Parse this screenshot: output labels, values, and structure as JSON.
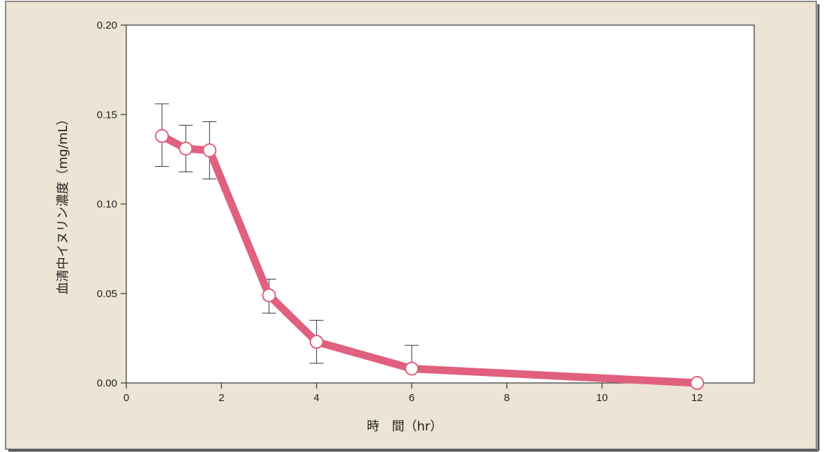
{
  "colors": {
    "background": "#ece4d4",
    "plot_area": "#ffffff",
    "series": "#e0607e",
    "marker_fill": "#ffffff",
    "axis": "#333333"
  },
  "chart_data": {
    "type": "line",
    "title": "",
    "xlabel": "時　間（hr）",
    "ylabel": "血清中イヌリン濃度（mg/mL）",
    "xlim": [
      0,
      13.2
    ],
    "ylim": [
      0,
      0.2
    ],
    "xticks": [
      0,
      2,
      4,
      6,
      8,
      10,
      12
    ],
    "xtick_labels": [
      "0",
      "2",
      "4",
      "6",
      "8",
      "10",
      "12"
    ],
    "yticks": [
      0,
      0.05,
      0.1,
      0.15,
      0.2
    ],
    "ytick_labels": [
      "0.00",
      "0.05",
      "0.10",
      "0.15",
      "0.20"
    ],
    "grid": false,
    "legend": "none",
    "series": [
      {
        "x": [
          0.75,
          1.25,
          1.75,
          3,
          4,
          6,
          12
        ],
        "y": [
          0.138,
          0.131,
          0.13,
          0.049,
          0.023,
          0.008,
          0.0
        ],
        "error_upper": [
          0.156,
          0.144,
          0.146,
          0.058,
          0.035,
          0.021,
          null
        ],
        "error_lower": [
          0.121,
          0.118,
          0.114,
          0.039,
          0.011,
          null,
          null
        ]
      }
    ]
  }
}
